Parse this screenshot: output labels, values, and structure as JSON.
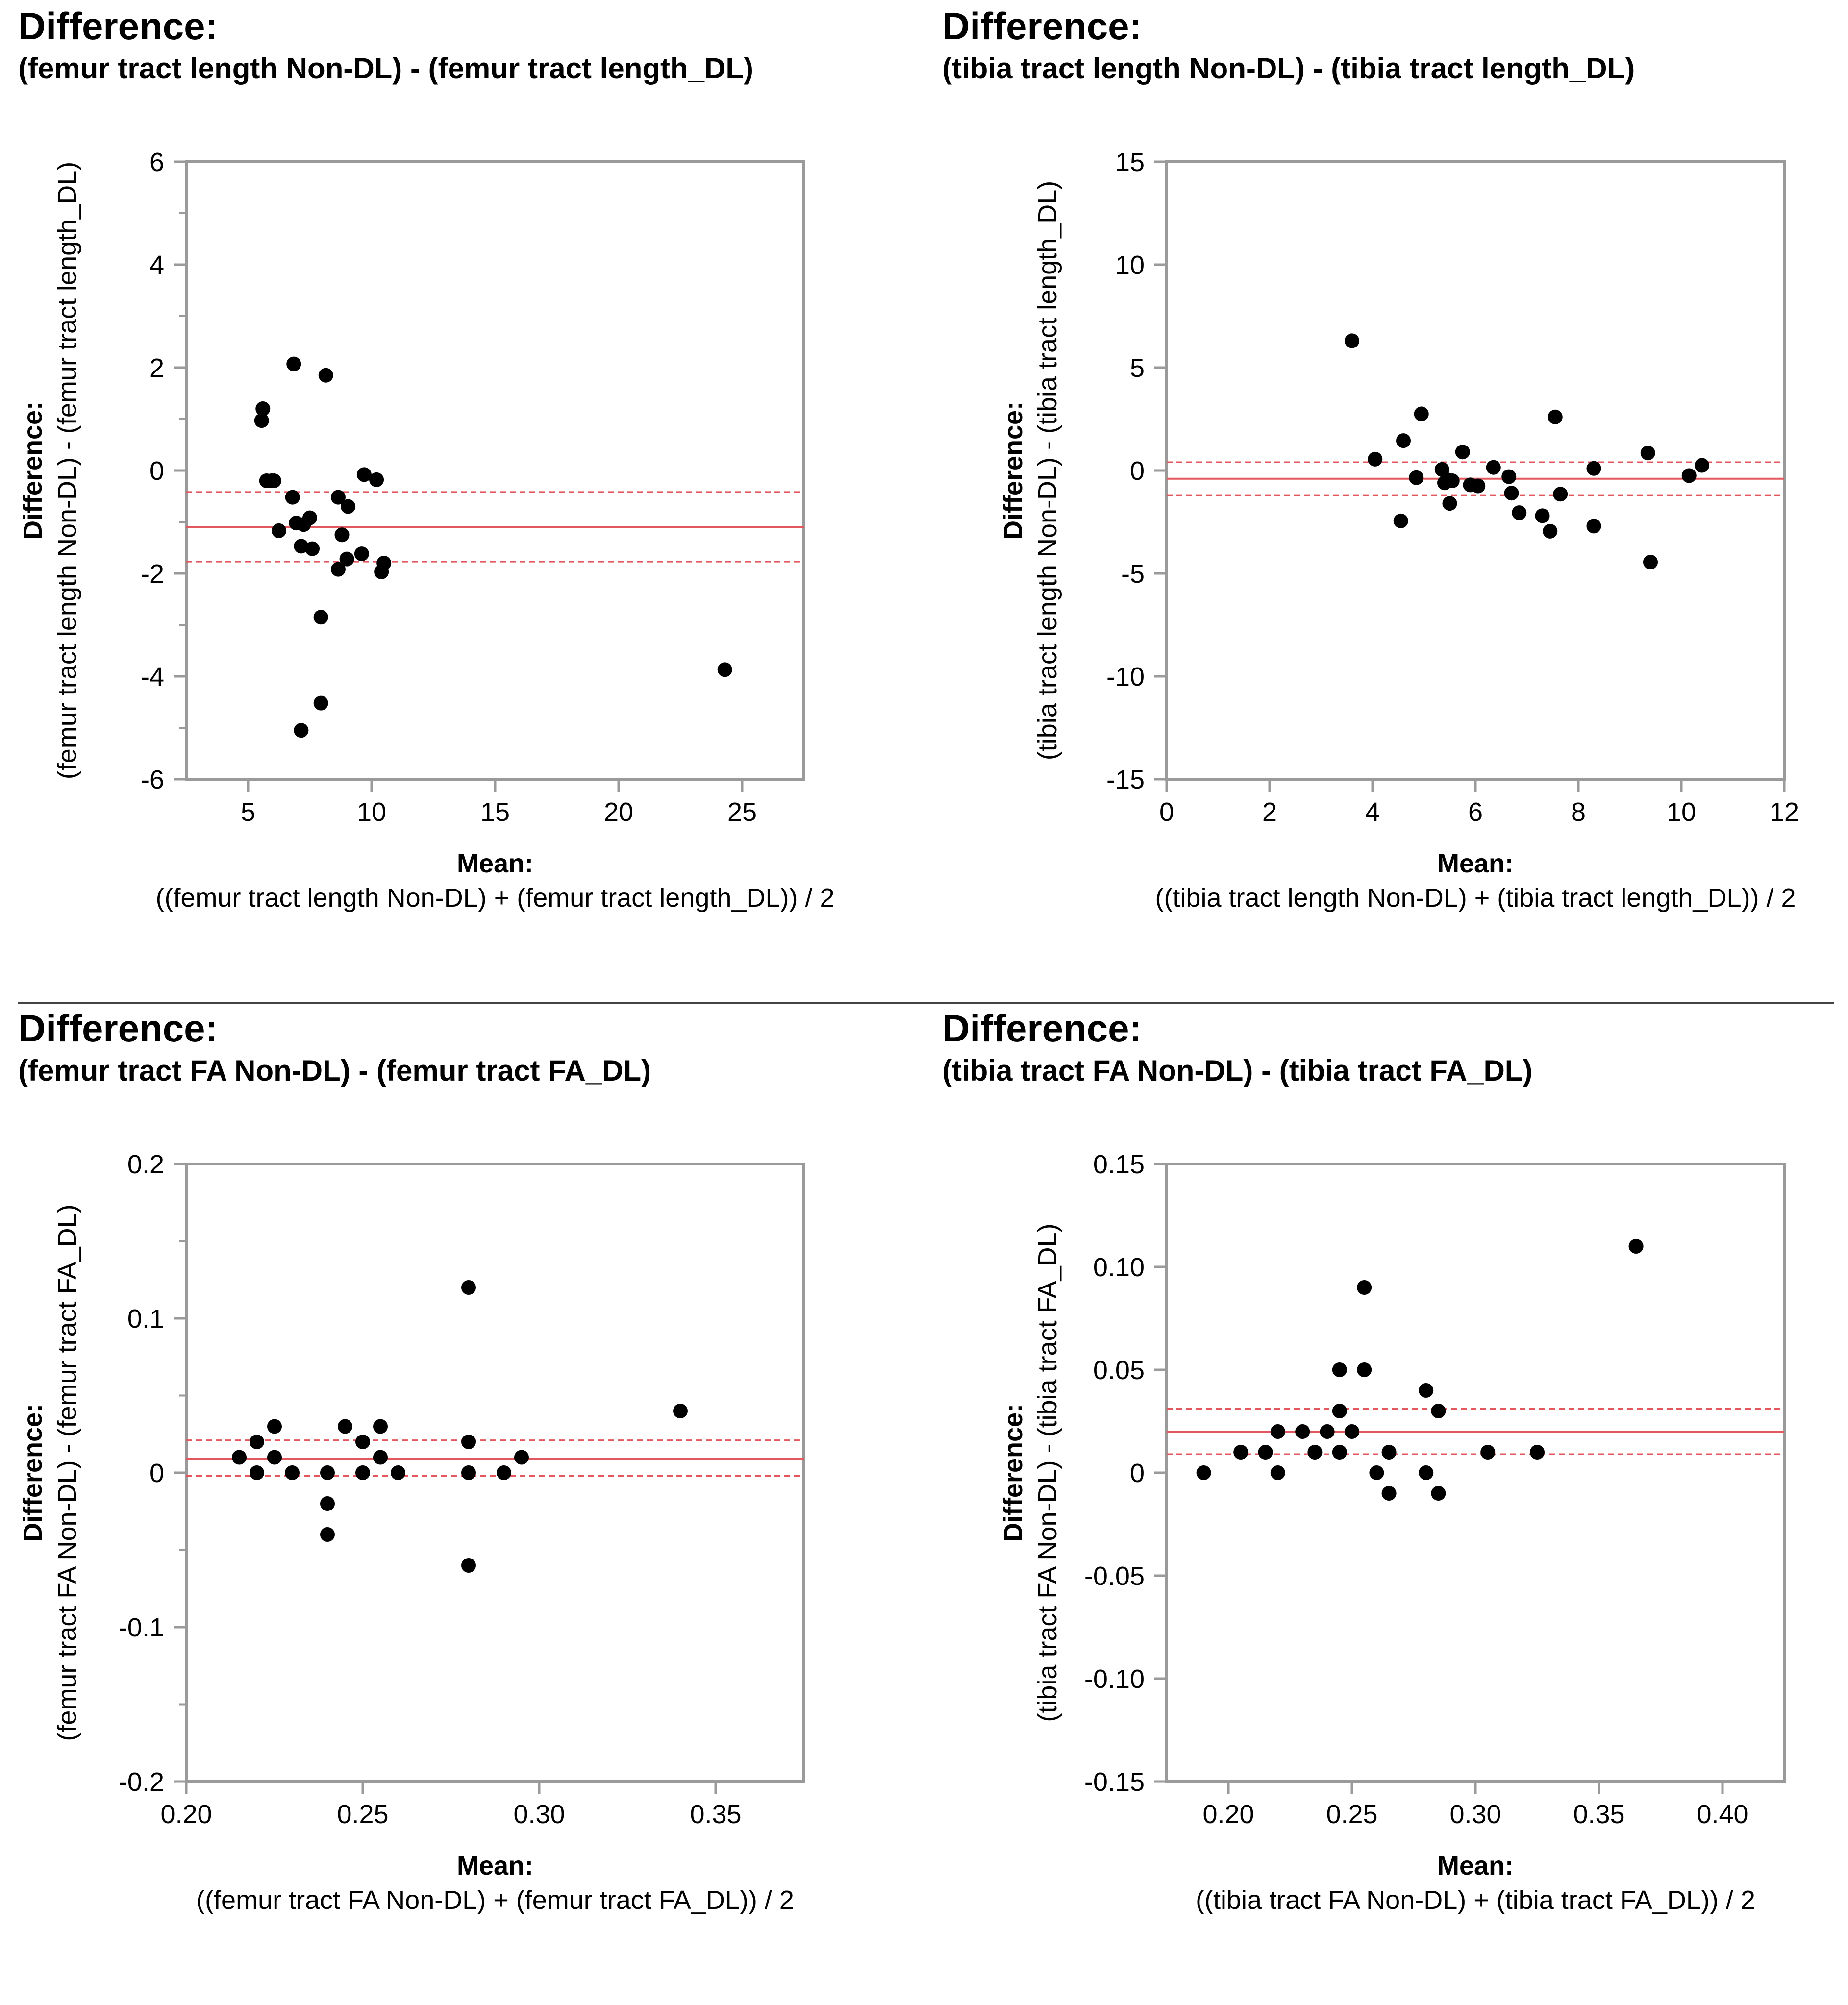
{
  "colors": {
    "frame": "#9a9a9a",
    "mean_line": "#e3585f",
    "points": "#000000"
  },
  "panels": [
    {
      "title": "Difference:",
      "subtitle": "(femur tract length Non-DL) - (femur tract length_DL)"
    },
    {
      "title": "Difference:",
      "subtitle": "(tibia tract length Non-DL) - (tibia tract length_DL)"
    },
    {
      "title": "Difference:",
      "subtitle": "(femur tract FA Non-DL) - (femur tract FA_DL)"
    },
    {
      "title": "Difference:",
      "subtitle": "(tibia tract FA Non-DL) - (tibia tract FA_DL)"
    }
  ],
  "chart_data": [
    {
      "type": "scatter",
      "xlabel_bold": "Mean:",
      "xlabel": "((femur tract length Non-DL) + (femur tract length_DL)) / 2",
      "ylabel_bold": "Difference:",
      "ylabel": "(femur tract length Non-DL) - (femur tract length_DL)",
      "xlim": [
        2.5,
        27.5
      ],
      "ylim": [
        -6,
        6
      ],
      "xticks": [
        5,
        10,
        15,
        20,
        25
      ],
      "xtick_labels": [
        "5",
        "10",
        "15",
        "20",
        "25"
      ],
      "yticks": [
        -6,
        -4,
        -2,
        0,
        2,
        4,
        6
      ],
      "ytick_labels": [
        "-6",
        "-4",
        "-2",
        "0",
        "2",
        "4",
        "6"
      ],
      "yminor": [
        -5,
        -3,
        -1,
        1,
        3,
        5
      ],
      "mean_difference": -1.1,
      "upper_ci": -0.42,
      "lower_ci": -1.77,
      "x": [
        5.6,
        5.55,
        5.75,
        5.95,
        6.05,
        6.25,
        6.8,
        6.95,
        7.15,
        7.25,
        7.5,
        7.6,
        7.95,
        7.95,
        8.15,
        8.65,
        8.65,
        8.8,
        9.05,
        9.0,
        9.6,
        9.7,
        10.2,
        10.4,
        10.5,
        6.85,
        7.15,
        24.3
      ],
      "y": [
        1.2,
        0.97,
        -0.2,
        -0.2,
        -0.2,
        -1.17,
        -0.52,
        -1.02,
        -1.47,
        -1.05,
        -0.92,
        -1.52,
        -2.85,
        -4.52,
        1.85,
        -0.52,
        -1.92,
        -1.25,
        -0.7,
        -1.72,
        -1.62,
        -0.08,
        -0.18,
        -1.97,
        -1.8,
        2.07,
        -5.05,
        -3.87
      ]
    },
    {
      "type": "scatter",
      "xlabel_bold": "Mean:",
      "xlabel": "((tibia tract length Non-DL) + (tibia tract length_DL)) / 2",
      "ylabel_bold": "Difference:",
      "ylabel": "(tibia tract length Non-DL) - (tibia tract length_DL)",
      "xlim": [
        0,
        12
      ],
      "ylim": [
        -15,
        15
      ],
      "xticks": [
        0,
        2,
        4,
        6,
        8,
        10,
        12
      ],
      "xtick_labels": [
        "0",
        "2",
        "4",
        "6",
        "8",
        "10",
        "12"
      ],
      "yticks": [
        -15,
        -10,
        -5,
        0,
        5,
        10,
        15
      ],
      "ytick_labels": [
        "-15",
        "-10",
        "-5",
        "0",
        "5",
        "10",
        "15"
      ],
      "yminor": [],
      "mean_difference": -0.4,
      "upper_ci": 0.4,
      "lower_ci": -1.2,
      "x": [
        3.6,
        4.05,
        4.55,
        4.6,
        4.85,
        4.95,
        5.35,
        5.4,
        5.45,
        5.5,
        5.55,
        5.75,
        5.9,
        6.05,
        6.35,
        6.65,
        6.7,
        6.85,
        7.3,
        7.45,
        7.55,
        7.65,
        8.3,
        8.3,
        9.35,
        9.4,
        10.15,
        10.4
      ],
      "y": [
        6.3,
        0.55,
        -2.45,
        1.45,
        -0.35,
        2.75,
        0.05,
        -0.6,
        -0.45,
        -1.6,
        -0.5,
        0.9,
        -0.7,
        -0.75,
        0.15,
        -0.3,
        -1.1,
        -2.05,
        -2.2,
        -2.95,
        2.6,
        -1.15,
        -2.7,
        0.1,
        0.85,
        -4.45,
        -0.25,
        0.25
      ]
    },
    {
      "type": "scatter",
      "xlabel_bold": "Mean:",
      "xlabel": "((femur tract FA Non-DL) + (femur tract FA_DL)) / 2",
      "ylabel_bold": "Difference:",
      "ylabel": "(femur tract FA Non-DL) - (femur tract FA_DL)",
      "xlim": [
        0.2,
        0.375
      ],
      "ylim": [
        -0.2,
        0.2
      ],
      "xticks": [
        0.2,
        0.25,
        0.3,
        0.35
      ],
      "xtick_labels": [
        "0.20",
        "0.25",
        "0.30",
        "0.35"
      ],
      "yticks": [
        -0.2,
        -0.1,
        0,
        0.1,
        0.2
      ],
      "ytick_labels": [
        "-0.2",
        "-0.1",
        "0",
        "0.1",
        "0.2"
      ],
      "yminor": [
        -0.15,
        -0.05,
        0.05,
        0.15
      ],
      "mean_difference": 0.009,
      "upper_ci": 0.021,
      "lower_ci": -0.002,
      "x": [
        0.215,
        0.22,
        0.22,
        0.225,
        0.225,
        0.23,
        0.24,
        0.24,
        0.24,
        0.245,
        0.25,
        0.25,
        0.255,
        0.255,
        0.26,
        0.28,
        0.28,
        0.28,
        0.28,
        0.29,
        0.295,
        0.34
      ],
      "y": [
        0.01,
        0.02,
        0.0,
        0.03,
        0.01,
        0.0,
        0.0,
        -0.02,
        -0.04,
        0.03,
        0.02,
        0.0,
        0.03,
        0.01,
        0.0,
        0.12,
        0.02,
        0.0,
        -0.06,
        0.0,
        0.01,
        0.04
      ]
    },
    {
      "type": "scatter",
      "xlabel_bold": "Mean:",
      "xlabel": "((tibia tract FA Non-DL) + (tibia tract FA_DL)) / 2",
      "ylabel_bold": "Difference:",
      "ylabel": "(tibia tract FA Non-DL) - (tibia tract FA_DL)",
      "xlim": [
        0.175,
        0.425
      ],
      "ylim": [
        -0.15,
        0.15
      ],
      "xticks": [
        0.2,
        0.25,
        0.3,
        0.35,
        0.4
      ],
      "xtick_labels": [
        "0.20",
        "0.25",
        "0.30",
        "0.35",
        "0.40"
      ],
      "yticks": [
        -0.15,
        -0.1,
        -0.05,
        0,
        0.05,
        0.1,
        0.15
      ],
      "ytick_labels": [
        "-0.15",
        "-0.10",
        "-0.05",
        "0",
        "0.05",
        "0.10",
        "0.15"
      ],
      "yminor": [],
      "mean_difference": 0.02,
      "upper_ci": 0.031,
      "lower_ci": 0.009,
      "x": [
        0.19,
        0.205,
        0.215,
        0.22,
        0.22,
        0.23,
        0.235,
        0.24,
        0.245,
        0.245,
        0.245,
        0.25,
        0.255,
        0.255,
        0.26,
        0.265,
        0.265,
        0.28,
        0.28,
        0.285,
        0.285,
        0.305,
        0.325,
        0.365
      ],
      "y": [
        0.0,
        0.01,
        0.01,
        0.02,
        0.0,
        0.02,
        0.01,
        0.02,
        0.05,
        0.03,
        0.01,
        0.02,
        0.09,
        0.05,
        0.0,
        0.01,
        -0.01,
        0.04,
        0.0,
        0.03,
        -0.01,
        0.01,
        0.01,
        0.11
      ]
    }
  ]
}
